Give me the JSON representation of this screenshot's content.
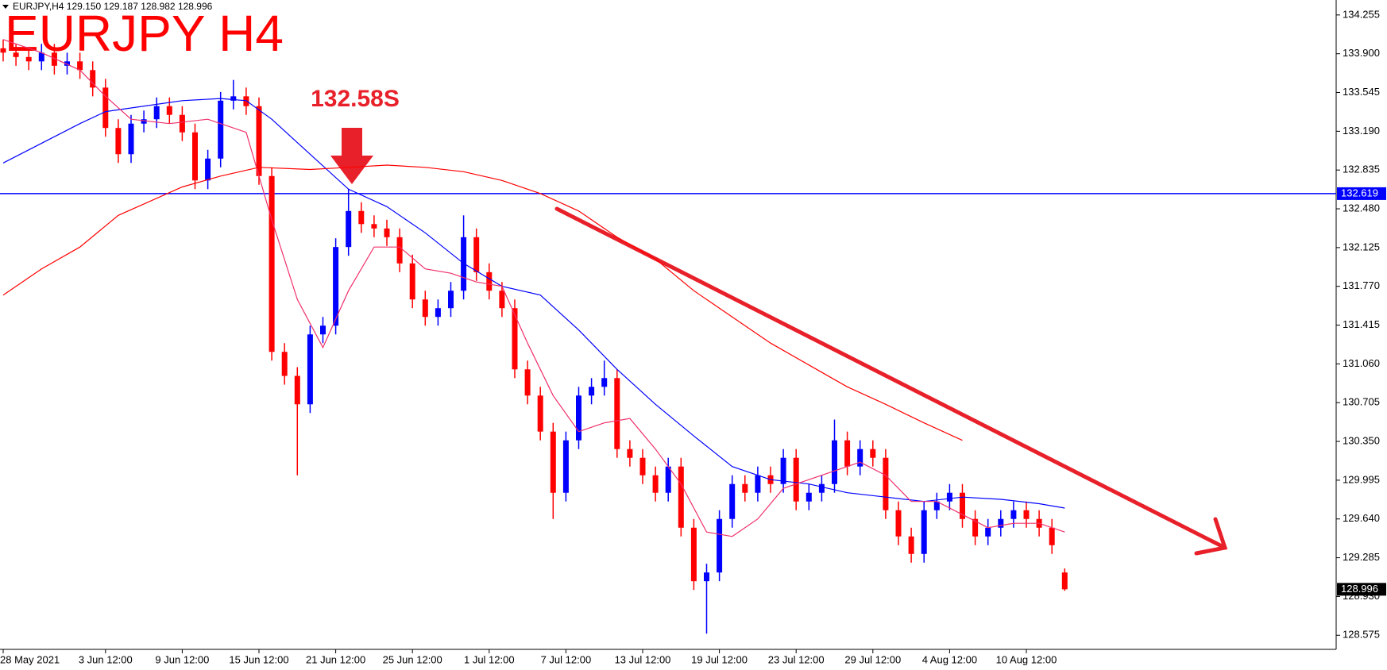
{
  "chart_data": {
    "type": "candlestick",
    "header": "EURJPY,H4  129.150 129.187 128.982 128.996",
    "title": "EURJPY H4",
    "annotation": "132.58S",
    "up_color": "#0000ff",
    "down_color": "#ff0000",
    "categories": [
      "28 May 2021",
      null,
      null,
      null,
      null,
      null,
      null,
      null,
      "3 Jun 12:00",
      null,
      null,
      null,
      null,
      null,
      "9 Jun 12:00",
      null,
      null,
      null,
      null,
      null,
      "15 Jun 12:00",
      null,
      null,
      null,
      null,
      null,
      "21 Jun 12:00",
      null,
      null,
      null,
      null,
      null,
      "25 Jun 12:00",
      null,
      null,
      null,
      null,
      null,
      "1 Jul 12:00",
      null,
      null,
      null,
      null,
      null,
      "7 Jul 12:00",
      null,
      null,
      null,
      null,
      null,
      "13 Jul 12:00",
      null,
      null,
      null,
      null,
      null,
      "19 Jul 12:00",
      null,
      null,
      null,
      null,
      null,
      "23 Jul 12:00",
      null,
      null,
      null,
      null,
      null,
      "29 Jul 12:00",
      null,
      null,
      null,
      null,
      null,
      "4 Aug 12:00",
      null,
      null,
      null,
      null,
      null,
      "10 Aug 12:00",
      null,
      null,
      null
    ],
    "open": [
      133.95,
      133.91,
      133.87,
      133.83,
      133.91,
      133.79,
      133.83,
      133.75,
      133.59,
      133.22,
      132.98,
      133.26,
      133.3,
      133.42,
      133.34,
      133.18,
      132.74,
      132.94,
      133.47,
      133.51,
      133.42,
      132.78,
      131.17,
      130.95,
      130.69,
      131.33,
      131.41,
      132.13,
      132.46,
      132.34,
      132.3,
      132.22,
      131.98,
      131.65,
      131.49,
      131.57,
      131.73,
      132.22,
      131.9,
      131.73,
      131.57,
      131.01,
      130.77,
      130.44,
      129.88,
      130.36,
      130.77,
      130.85,
      130.93,
      130.28,
      130.2,
      130.04,
      129.88,
      130.12,
      129.56,
      129.07,
      129.15,
      129.64,
      129.96,
      129.88,
      130.04,
      129.96,
      130.2,
      129.8,
      129.88,
      129.96,
      130.36,
      130.12,
      130.28,
      130.2,
      129.72,
      129.48,
      129.32,
      129.72,
      129.8,
      129.88,
      129.64,
      129.48,
      129.56,
      129.64,
      129.72,
      129.64,
      129.56,
      129.15
    ],
    "high": [
      134.03,
      133.99,
      133.95,
      133.99,
      133.99,
      133.91,
      133.91,
      133.83,
      133.67,
      133.3,
      133.34,
      133.38,
      133.5,
      133.5,
      133.42,
      133.26,
      133.02,
      133.55,
      133.66,
      133.59,
      133.5,
      132.86,
      131.25,
      131.03,
      131.41,
      131.49,
      132.21,
      132.66,
      132.54,
      132.42,
      132.38,
      132.3,
      132.06,
      131.73,
      131.65,
      131.81,
      132.42,
      132.3,
      131.98,
      131.81,
      131.65,
      131.09,
      130.85,
      130.52,
      130.44,
      130.85,
      130.93,
      131.09,
      131.01,
      130.36,
      130.28,
      130.12,
      130.2,
      130.2,
      129.64,
      129.23,
      129.72,
      130.04,
      130.04,
      130.12,
      130.12,
      130.28,
      130.28,
      129.96,
      130.04,
      130.55,
      130.44,
      130.36,
      130.36,
      130.28,
      129.8,
      129.56,
      129.8,
      129.88,
      129.96,
      129.96,
      129.72,
      129.64,
      129.72,
      129.8,
      129.8,
      129.72,
      129.64,
      129.187
    ],
    "low": [
      133.83,
      133.79,
      133.75,
      133.75,
      133.71,
      133.71,
      133.67,
      133.51,
      133.14,
      132.9,
      132.9,
      133.18,
      133.22,
      133.26,
      133.1,
      132.66,
      132.66,
      132.86,
      133.39,
      133.34,
      132.7,
      131.09,
      130.87,
      130.04,
      130.61,
      131.25,
      131.33,
      132.05,
      132.26,
      132.22,
      132.14,
      131.9,
      131.57,
      131.41,
      131.41,
      131.49,
      131.65,
      131.82,
      131.65,
      131.49,
      130.93,
      130.69,
      130.36,
      129.64,
      129.8,
      130.28,
      130.69,
      130.77,
      130.2,
      130.12,
      129.96,
      129.8,
      129.8,
      129.48,
      128.99,
      128.59,
      129.07,
      129.56,
      129.8,
      129.8,
      129.88,
      129.88,
      129.72,
      129.72,
      129.8,
      129.88,
      130.04,
      130.04,
      130.12,
      129.64,
      129.4,
      129.24,
      129.24,
      129.64,
      129.72,
      129.56,
      129.4,
      129.4,
      129.48,
      129.56,
      129.56,
      129.48,
      129.32,
      128.982
    ],
    "close": [
      133.91,
      133.87,
      133.83,
      133.91,
      133.79,
      133.83,
      133.75,
      133.59,
      133.22,
      132.98,
      133.26,
      133.3,
      133.42,
      133.34,
      133.18,
      132.74,
      132.94,
      133.47,
      133.51,
      133.42,
      132.78,
      131.17,
      130.95,
      130.69,
      131.33,
      131.41,
      132.13,
      132.46,
      132.34,
      132.3,
      132.22,
      131.98,
      131.65,
      131.49,
      131.57,
      131.73,
      132.22,
      131.9,
      131.73,
      131.57,
      131.01,
      130.77,
      130.44,
      129.88,
      130.36,
      130.77,
      130.85,
      130.93,
      130.28,
      130.2,
      130.04,
      129.88,
      130.12,
      129.56,
      129.07,
      129.15,
      129.64,
      129.96,
      129.88,
      130.04,
      129.96,
      130.2,
      129.8,
      129.88,
      129.96,
      130.36,
      130.12,
      130.28,
      130.2,
      129.72,
      129.48,
      129.32,
      129.72,
      129.8,
      129.88,
      129.64,
      129.48,
      129.56,
      129.64,
      129.72,
      129.64,
      129.56,
      129.4,
      128.996
    ],
    "lines": [
      {
        "color": "#0000ff",
        "x": [
          0,
          6,
          8,
          14,
          17,
          19,
          21,
          24,
          27,
          30,
          33,
          36,
          39,
          42,
          45,
          48,
          51,
          54,
          57,
          60,
          63,
          66,
          69,
          72,
          75,
          78,
          81,
          83
        ],
        "values": [
          132.9,
          133.26,
          133.37,
          133.47,
          133.49,
          133.47,
          133.3,
          132.98,
          132.66,
          132.5,
          132.26,
          131.98,
          131.77,
          131.69,
          131.37,
          131.01,
          130.69,
          130.4,
          130.12,
          130.0,
          129.96,
          129.88,
          129.84,
          129.8,
          129.84,
          129.82,
          129.78,
          129.74
        ]
      },
      {
        "color": "#f0306a",
        "x": [
          0,
          3,
          6,
          8,
          10,
          13,
          16,
          19,
          21,
          23,
          25,
          27,
          29,
          31,
          33,
          35,
          37,
          39,
          41,
          43,
          45,
          47,
          49,
          51,
          53,
          55,
          57,
          59,
          61,
          63,
          65,
          67,
          69,
          71,
          73,
          75,
          77,
          79,
          81,
          83
        ],
        "values": [
          134.03,
          133.91,
          133.75,
          133.51,
          133.3,
          133.26,
          133.3,
          133.18,
          132.38,
          131.65,
          131.21,
          131.73,
          132.13,
          132.13,
          131.93,
          131.89,
          131.81,
          131.77,
          131.25,
          130.77,
          130.44,
          130.52,
          130.56,
          130.28,
          129.96,
          129.52,
          129.48,
          129.64,
          129.92,
          130.0,
          130.08,
          130.16,
          130.04,
          129.8,
          129.8,
          129.68,
          129.56,
          129.6,
          129.6,
          129.52
        ]
      },
      {
        "color": "#ff0000",
        "x": [
          0,
          3,
          6,
          9,
          14,
          17,
          20,
          24,
          27,
          30,
          33,
          36,
          39,
          42,
          45,
          48,
          51,
          54,
          57,
          60,
          63,
          66,
          69,
          72,
          75
        ],
        "values": [
          131.69,
          131.93,
          132.13,
          132.42,
          132.68,
          132.78,
          132.86,
          132.84,
          132.86,
          132.88,
          132.86,
          132.82,
          132.74,
          132.62,
          132.46,
          132.22,
          132.02,
          131.73,
          131.49,
          131.25,
          131.05,
          130.85,
          130.69,
          130.52,
          130.36
        ]
      }
    ],
    "hline": {
      "value": 132.619,
      "color": "#0000ff"
    },
    "last_price": 128.996,
    "ylim": [
      128.446,
      134.392
    ],
    "yticks": [
      134.255,
      {
        "value": 133.9,
        "label": "133.900"
      },
      133.545,
      {
        "value": 133.19,
        "label": "133.190"
      },
      132.835,
      {
        "value": 132.48,
        "label": "132.480"
      },
      132.125,
      {
        "value": 131.77,
        "label": "131.770"
      },
      131.415,
      {
        "value": 131.06,
        "label": "131.060"
      },
      130.705,
      {
        "value": 130.35,
        "label": "130.350"
      },
      129.995,
      {
        "value": 129.64,
        "label": "129.640"
      },
      129.285,
      {
        "value": 128.93,
        "label": "128.930"
      },
      128.575
    ]
  }
}
